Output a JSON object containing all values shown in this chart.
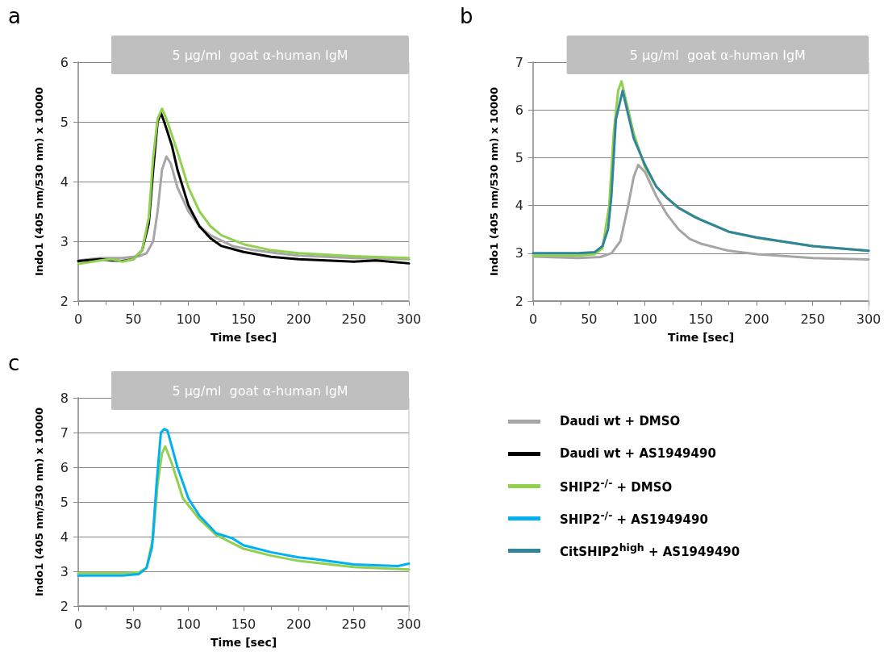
{
  "chart_data": [
    {
      "type": "line",
      "title": "a",
      "xlabel": "Time [sec]",
      "ylabel": "Indo1 (405 nm/530 nm) x 10000",
      "xlim": [
        0,
        300
      ],
      "xticks": [
        0,
        50,
        100,
        150,
        200,
        250,
        300
      ],
      "ylim": [
        2,
        6
      ],
      "yticks": [
        2,
        3,
        4,
        5,
        6
      ],
      "grid": "y",
      "legend": "right",
      "bands": [
        {
          "axis": "x",
          "from": 30,
          "to": 300,
          "label": "5 µg/ml  goat α-human IgM",
          "color": "#bfbfbf"
        }
      ],
      "series": [
        {
          "name": "Daudi wt + DMSO",
          "color": "#a6a6a6",
          "x": [
            0,
            20,
            40,
            55,
            62,
            68,
            72,
            76,
            80,
            84,
            90,
            100,
            110,
            120,
            140,
            160,
            180,
            200,
            250,
            300
          ],
          "values": [
            2.68,
            2.72,
            2.72,
            2.75,
            2.8,
            3.0,
            3.5,
            4.2,
            4.42,
            4.3,
            3.9,
            3.5,
            3.25,
            3.1,
            2.92,
            2.85,
            2.8,
            2.76,
            2.72,
            2.7
          ]
        },
        {
          "name": "Daudi wt + AS1949490",
          "color": "#000000",
          "x": [
            0,
            20,
            30,
            40,
            50,
            58,
            64,
            68,
            72,
            75,
            78,
            85,
            90,
            100,
            110,
            120,
            130,
            150,
            175,
            200,
            250,
            270,
            300
          ],
          "values": [
            2.67,
            2.7,
            2.68,
            2.67,
            2.7,
            2.85,
            3.3,
            4.2,
            5.0,
            5.15,
            5.0,
            4.6,
            4.2,
            3.6,
            3.25,
            3.05,
            2.92,
            2.82,
            2.74,
            2.7,
            2.66,
            2.68,
            2.63
          ]
        },
        {
          "name": "SHIP2$^{-/-}$ + DMSO",
          "color": "#92d050",
          "x": [
            0,
            20,
            30,
            40,
            50,
            58,
            64,
            68,
            72,
            76,
            80,
            90,
            100,
            110,
            120,
            130,
            150,
            175,
            200,
            250,
            300
          ],
          "values": [
            2.62,
            2.68,
            2.7,
            2.66,
            2.7,
            2.85,
            3.4,
            4.4,
            5.05,
            5.22,
            5.05,
            4.5,
            3.9,
            3.5,
            3.25,
            3.1,
            2.95,
            2.85,
            2.8,
            2.75,
            2.72
          ]
        }
      ]
    },
    {
      "type": "line",
      "title": "b",
      "xlabel": "Time [sec]",
      "ylabel": "Indo1 (405 nm/530 nm) x 10000",
      "xlim": [
        0,
        300
      ],
      "xticks": [
        0,
        50,
        100,
        150,
        200,
        250,
        300
      ],
      "ylim": [
        2,
        7
      ],
      "yticks": [
        2,
        3,
        4,
        5,
        6,
        7
      ],
      "grid": "y",
      "legend": "bottom left",
      "bands": [
        {
          "axis": "x",
          "from": 30,
          "to": 300,
          "label": "5 µg/ml  goat α-human IgM",
          "color": "#bfbfbf"
        }
      ],
      "series": [
        {
          "name": "Daudi wt + DMSO",
          "color": "#a6a6a6",
          "x": [
            0,
            40,
            60,
            70,
            78,
            85,
            90,
            94,
            100,
            110,
            120,
            130,
            140,
            150,
            175,
            200,
            250,
            300
          ],
          "values": [
            2.93,
            2.9,
            2.92,
            3.0,
            3.25,
            4.0,
            4.6,
            4.85,
            4.7,
            4.2,
            3.8,
            3.5,
            3.3,
            3.2,
            3.05,
            2.98,
            2.9,
            2.87
          ]
        },
        {
          "name": "SHIP2$^{-/-}$ + DMSO",
          "color": "#92d050",
          "x": [
            0,
            40,
            55,
            62,
            68,
            72,
            76,
            79,
            82,
            90,
            100,
            110,
            120,
            130,
            150,
            175,
            200,
            250,
            300
          ],
          "values": [
            2.95,
            2.95,
            2.98,
            3.1,
            4.0,
            5.5,
            6.4,
            6.6,
            6.3,
            5.5,
            4.8,
            4.4,
            4.15,
            3.95,
            3.7,
            3.45,
            3.32,
            3.15,
            3.05
          ]
        },
        {
          "name": "CitSHIP2$^{high}$ + AS1949490",
          "color": "#31849b",
          "x": [
            0,
            40,
            55,
            62,
            67,
            70,
            74,
            78,
            80,
            84,
            90,
            100,
            110,
            120,
            130,
            145,
            150,
            175,
            200,
            250,
            300
          ],
          "values": [
            3.0,
            3.0,
            3.02,
            3.15,
            3.5,
            4.2,
            5.8,
            6.2,
            6.4,
            6.0,
            5.4,
            4.85,
            4.4,
            4.15,
            3.95,
            3.75,
            3.7,
            3.45,
            3.33,
            3.15,
            3.05
          ]
        }
      ]
    },
    {
      "type": "line",
      "title": "c",
      "xlabel": "Time [sec]",
      "ylabel": "Indo1 (405 nm/530 nm) x 10000",
      "xlim": [
        0,
        300
      ],
      "xticks": [
        0,
        50,
        100,
        150,
        200,
        250,
        300
      ],
      "ylim": [
        2,
        8
      ],
      "yticks": [
        2,
        3,
        4,
        5,
        6,
        7,
        8
      ],
      "grid": "y",
      "legend": "right",
      "bands": [
        {
          "axis": "x",
          "from": 30,
          "to": 300,
          "label": "5 µg/ml  goat α-human IgM",
          "color": "#bfbfbf"
        }
      ],
      "series": [
        {
          "name": "SHIP2$^{-/-}$ + DMSO",
          "color": "#92d050",
          "x": [
            0,
            40,
            55,
            62,
            68,
            72,
            76,
            79,
            85,
            95,
            110,
            125,
            150,
            175,
            200,
            250,
            300
          ],
          "values": [
            2.95,
            2.95,
            2.97,
            3.1,
            4.0,
            5.5,
            6.4,
            6.6,
            6.1,
            5.1,
            4.5,
            4.05,
            3.65,
            3.45,
            3.3,
            3.12,
            3.05
          ]
        },
        {
          "name": "SHIP2$^{-/-}$ + AS1949490",
          "color": "#00b0f0",
          "x": [
            0,
            40,
            55,
            62,
            67,
            71,
            75,
            78,
            81,
            90,
            100,
            110,
            125,
            140,
            150,
            175,
            200,
            215,
            250,
            290,
            300
          ],
          "values": [
            2.88,
            2.88,
            2.92,
            3.1,
            3.7,
            5.5,
            7.0,
            7.1,
            7.05,
            6.0,
            5.1,
            4.6,
            4.1,
            3.95,
            3.75,
            3.55,
            3.4,
            3.35,
            3.2,
            3.15,
            3.22
          ]
        }
      ]
    }
  ]
}
